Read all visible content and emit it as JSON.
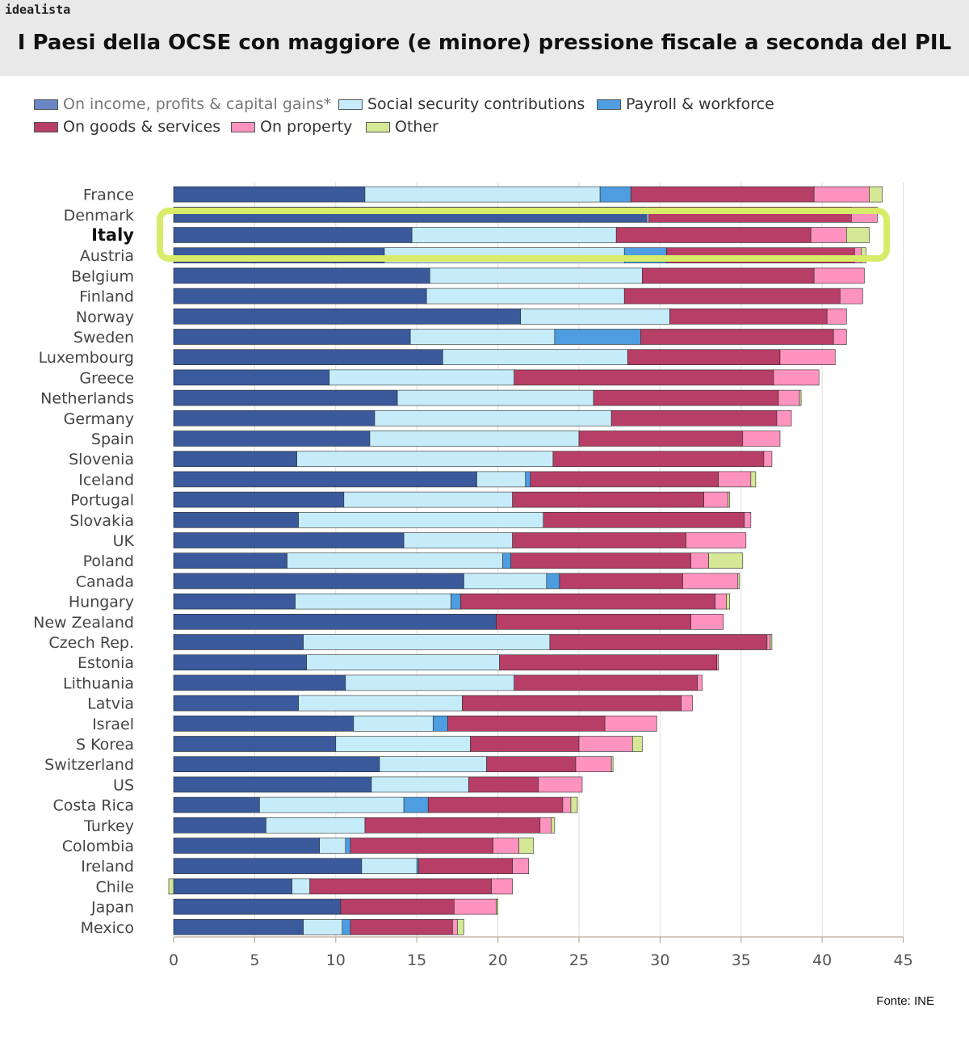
{
  "header": {
    "brand": "idealista",
    "title": "I Paesi della OCSE con maggiore (e minore) pressione fiscale a seconda del PIL"
  },
  "source": "Fonte: INE",
  "chart_data": {
    "type": "bar",
    "orientation": "horizontal",
    "stacked": true,
    "title": "I Paesi della OCSE con maggiore (e minore) pressione fiscale a seconda del PIL",
    "xlabel": "",
    "ylabel": "",
    "xlim": [
      0,
      45
    ],
    "xticks": [
      "0",
      "5",
      "10",
      "15",
      "20",
      "25",
      "30",
      "35",
      "40",
      "45"
    ],
    "grid": "vertical",
    "legend_position": "top-left",
    "highlight_category": "Italy",
    "highlight_color": "#d9ec6a",
    "categories": [
      "France",
      "Denmark",
      "Italy",
      "Austria",
      "Belgium",
      "Finland",
      "Norway",
      "Sweden",
      "Luxembourg",
      "Greece",
      "Netherlands",
      "Germany",
      "Spain",
      "Slovenia",
      "Iceland",
      "Portugal",
      "Slovakia",
      "UK",
      "Poland",
      "Canada",
      "Hungary",
      "New Zealand",
      "Czech Rep.",
      "Estonia",
      "Lithuania",
      "Latvia",
      "Israel",
      "S Korea",
      "Switzerland",
      "US",
      "Costa Rica",
      "Turkey",
      "Colombia",
      "Ireland",
      "Chile",
      "Japan",
      "Mexico"
    ],
    "series": [
      {
        "name": "On income, profits & capital gains*",
        "color": "#3a5a9c",
        "values": [
          11.8,
          29.2,
          14.7,
          13.0,
          15.8,
          15.6,
          21.4,
          14.6,
          16.6,
          9.6,
          13.8,
          12.4,
          12.1,
          7.6,
          18.7,
          10.5,
          7.7,
          14.2,
          7.0,
          17.9,
          7.5,
          19.9,
          8.0,
          8.2,
          10.6,
          7.7,
          11.1,
          10.0,
          12.7,
          12.2,
          5.3,
          5.7,
          9.0,
          11.6,
          7.3,
          10.3,
          8.0
        ]
      },
      {
        "name": "Social security contributions",
        "color": "#c6ecfa",
        "values": [
          14.5,
          0.1,
          12.6,
          14.8,
          13.1,
          12.2,
          9.2,
          8.9,
          11.4,
          11.4,
          12.1,
          14.6,
          12.9,
          15.8,
          3.0,
          10.4,
          15.1,
          6.7,
          13.3,
          5.1,
          9.6,
          0.0,
          15.2,
          11.9,
          10.4,
          10.1,
          4.9,
          8.3,
          6.6,
          6.0,
          8.9,
          6.1,
          1.6,
          3.4,
          1.1,
          0.0,
          2.4
        ]
      },
      {
        "name": "Payroll & workforce",
        "color": "#4d9de0",
        "values": [
          1.9,
          0.0,
          0.0,
          2.6,
          0.0,
          0.0,
          0.0,
          5.3,
          0.0,
          0.0,
          0.0,
          0.0,
          0.0,
          0.0,
          0.3,
          0.0,
          0.0,
          0.0,
          0.5,
          0.8,
          0.6,
          0.0,
          0.0,
          0.0,
          0.0,
          0.0,
          0.9,
          0.0,
          0.0,
          0.0,
          1.5,
          0.0,
          0.3,
          0.1,
          0.0,
          0.0,
          0.5
        ]
      },
      {
        "name": "On goods & services",
        "color": "#b73e66",
        "values": [
          11.3,
          12.5,
          12.0,
          11.6,
          10.6,
          13.3,
          9.7,
          11.9,
          9.4,
          16.0,
          11.4,
          10.2,
          10.1,
          13.0,
          11.6,
          11.8,
          12.4,
          10.7,
          11.1,
          7.6,
          15.7,
          12.0,
          13.4,
          13.4,
          11.3,
          13.5,
          9.7,
          6.7,
          5.5,
          4.3,
          8.3,
          10.8,
          8.8,
          5.8,
          11.2,
          7.0,
          6.3
        ]
      },
      {
        "name": "On property",
        "color": "#ff93bf",
        "values": [
          3.4,
          1.6,
          2.2,
          0.4,
          3.1,
          1.4,
          1.2,
          0.8,
          3.4,
          2.8,
          1.3,
          0.9,
          2.3,
          0.5,
          2.0,
          1.5,
          0.4,
          3.7,
          1.1,
          3.4,
          0.7,
          2.0,
          0.2,
          0.1,
          0.3,
          0.7,
          3.2,
          3.3,
          2.2,
          2.7,
          0.5,
          0.7,
          1.6,
          1.0,
          1.3,
          2.6,
          0.3
        ]
      },
      {
        "name": "Other",
        "color": "#d4e896",
        "values": [
          0.8,
          0.0,
          1.4,
          0.3,
          0.0,
          0.0,
          0.0,
          0.0,
          0.0,
          0.0,
          0.1,
          0.0,
          0.0,
          0.0,
          0.3,
          0.1,
          0.0,
          0.0,
          2.1,
          0.1,
          0.2,
          0.0,
          0.1,
          0.0,
          0.0,
          0.0,
          0.0,
          0.6,
          0.1,
          0.0,
          0.4,
          0.2,
          0.9,
          0.0,
          -0.3,
          0.1,
          0.4
        ]
      }
    ]
  }
}
